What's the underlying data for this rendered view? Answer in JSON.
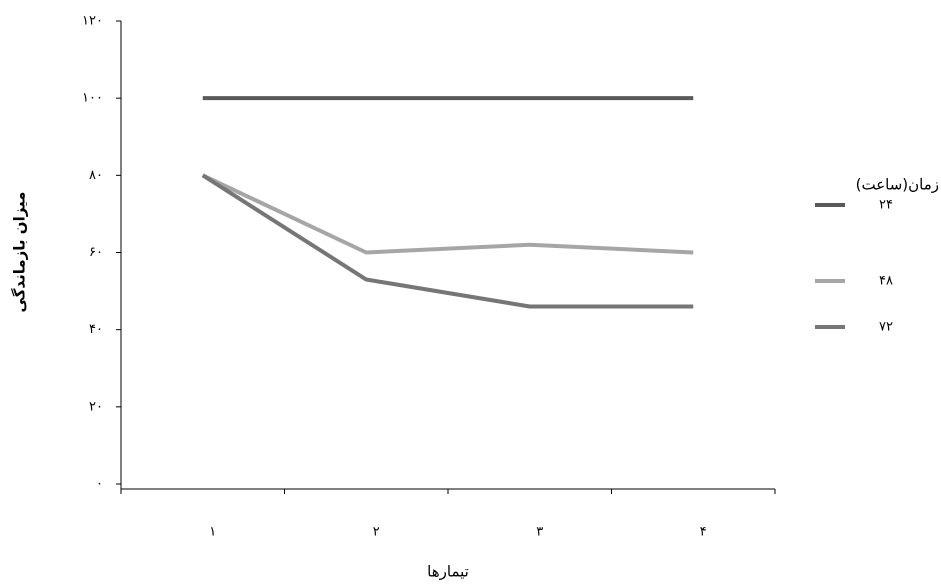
{
  "chart_data": {
    "type": "line",
    "y_label": "میزان بازماندگی",
    "x_label": "تیمارها",
    "categories": [
      "۱",
      "۲",
      "۳",
      "۴"
    ],
    "legend_title": "زمان(ساعت)",
    "series": [
      {
        "name": "۲۴",
        "color": "#595959",
        "values": [
          100,
          100,
          100,
          100
        ]
      },
      {
        "name": "۴۸",
        "color": "#a6a6a6",
        "values": [
          80,
          60,
          62,
          60
        ]
      },
      {
        "name": "۷۲",
        "color": "#767676",
        "values": [
          80,
          53,
          46,
          46
        ]
      }
    ],
    "ylim": [
      0,
      120
    ],
    "yticks": [
      {
        "value": 0,
        "label": "۰"
      },
      {
        "value": 20,
        "label": "۲۰"
      },
      {
        "value": 40,
        "label": "۴۰"
      },
      {
        "value": 60,
        "label": "۶۰"
      },
      {
        "value": 80,
        "label": "۸۰"
      },
      {
        "value": 100,
        "label": "۱۰۰"
      },
      {
        "value": 120,
        "label": "۱۲۰"
      }
    ],
    "grid": false,
    "legend": "right"
  }
}
